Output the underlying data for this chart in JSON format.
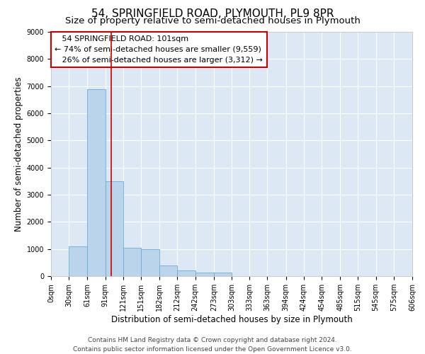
{
  "title": "54, SPRINGFIELD ROAD, PLYMOUTH, PL9 8PR",
  "subtitle": "Size of property relative to semi-detached houses in Plymouth",
  "xlabel": "Distribution of semi-detached houses by size in Plymouth",
  "ylabel": "Number of semi-detached properties",
  "footer_line1": "Contains HM Land Registry data © Crown copyright and database right 2024.",
  "footer_line2": "Contains public sector information licensed under the Open Government Licence v3.0.",
  "annotation_line1": "   54 SPRINGFIELD ROAD: 101sqm",
  "annotation_line2": "← 74% of semi-detached houses are smaller (9,559)",
  "annotation_line3": "   26% of semi-detached houses are larger (3,312) →",
  "property_size": 101,
  "bar_left_edges": [
    0,
    30,
    61,
    91,
    121,
    151,
    182,
    212,
    242,
    273,
    303,
    333,
    363,
    394,
    424,
    454,
    485,
    515,
    545,
    575
  ],
  "bar_widths": [
    30,
    31,
    30,
    30,
    30,
    31,
    30,
    30,
    31,
    30,
    30,
    30,
    31,
    30,
    30,
    31,
    30,
    30,
    30,
    31
  ],
  "bar_heights": [
    0,
    1100,
    6900,
    3500,
    1050,
    1000,
    400,
    200,
    130,
    130,
    0,
    0,
    0,
    0,
    0,
    0,
    0,
    0,
    0,
    0
  ],
  "bar_color": "#bad4eb",
  "bar_edge_color": "#6aaed6",
  "vline_color": "#cc0000",
  "vline_x": 101,
  "ylim": [
    0,
    9000
  ],
  "yticks": [
    0,
    1000,
    2000,
    3000,
    4000,
    5000,
    6000,
    7000,
    8000,
    9000
  ],
  "xlim": [
    0,
    606
  ],
  "xtick_positions": [
    0,
    30,
    61,
    91,
    121,
    151,
    182,
    212,
    242,
    273,
    303,
    333,
    363,
    394,
    424,
    454,
    485,
    515,
    545,
    575,
    606
  ],
  "xtick_labels": [
    "0sqm",
    "30sqm",
    "61sqm",
    "91sqm",
    "121sqm",
    "151sqm",
    "182sqm",
    "212sqm",
    "242sqm",
    "273sqm",
    "303sqm",
    "333sqm",
    "363sqm",
    "394sqm",
    "424sqm",
    "454sqm",
    "485sqm",
    "515sqm",
    "545sqm",
    "575sqm",
    "606sqm"
  ],
  "annotation_box_edge": "#cc0000",
  "background_color": "#dce9f5",
  "grid_color": "#ffffff",
  "title_fontsize": 11,
  "subtitle_fontsize": 9.5,
  "axis_label_fontsize": 8.5,
  "tick_fontsize": 7,
  "annotation_fontsize": 8,
  "footer_fontsize": 6.5
}
